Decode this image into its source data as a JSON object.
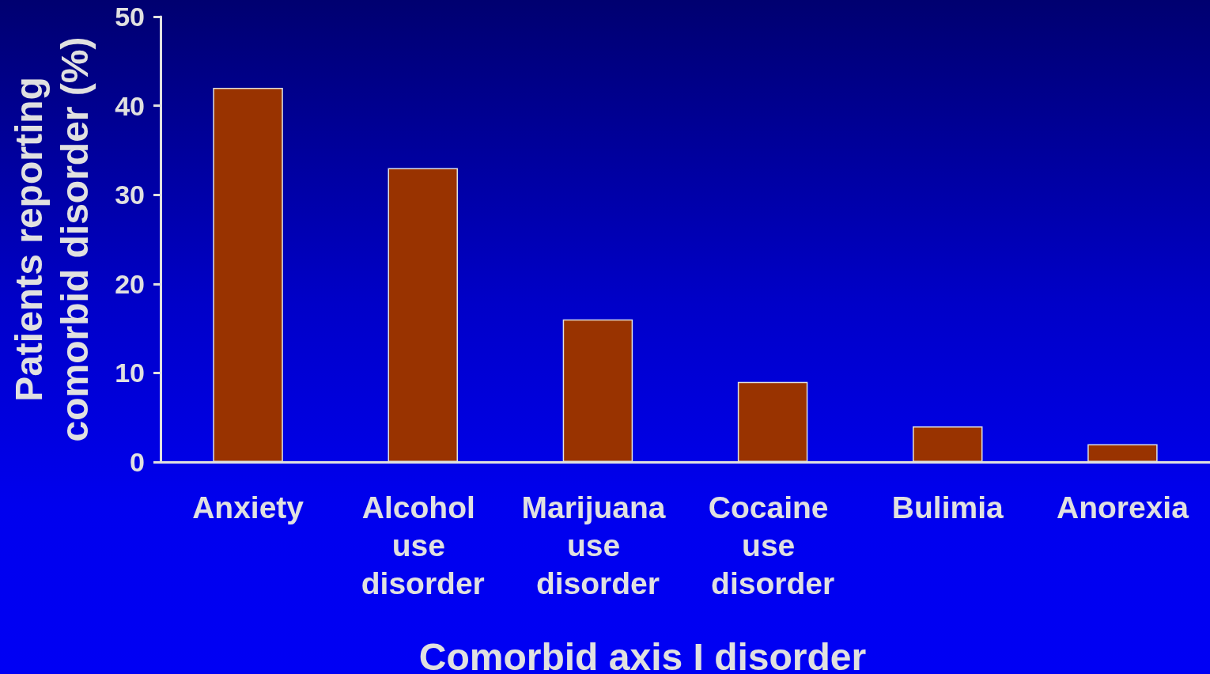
{
  "chart_data": {
    "type": "bar",
    "xlabel": "Comorbid axis I disorder",
    "ylabel": "Patients reporting comorbid disorder (%)",
    "categories": [
      "Anxiety",
      "Alcohol use disorder",
      "Marijuana use disorder",
      "Cocaine use disorder",
      "Bulimia",
      "Anorexia"
    ],
    "values": [
      42,
      33,
      16,
      9,
      4,
      2
    ],
    "color": "#993300",
    "ylim": [
      0,
      50
    ],
    "yticks": [
      0,
      10,
      20,
      30,
      40,
      50
    ]
  }
}
